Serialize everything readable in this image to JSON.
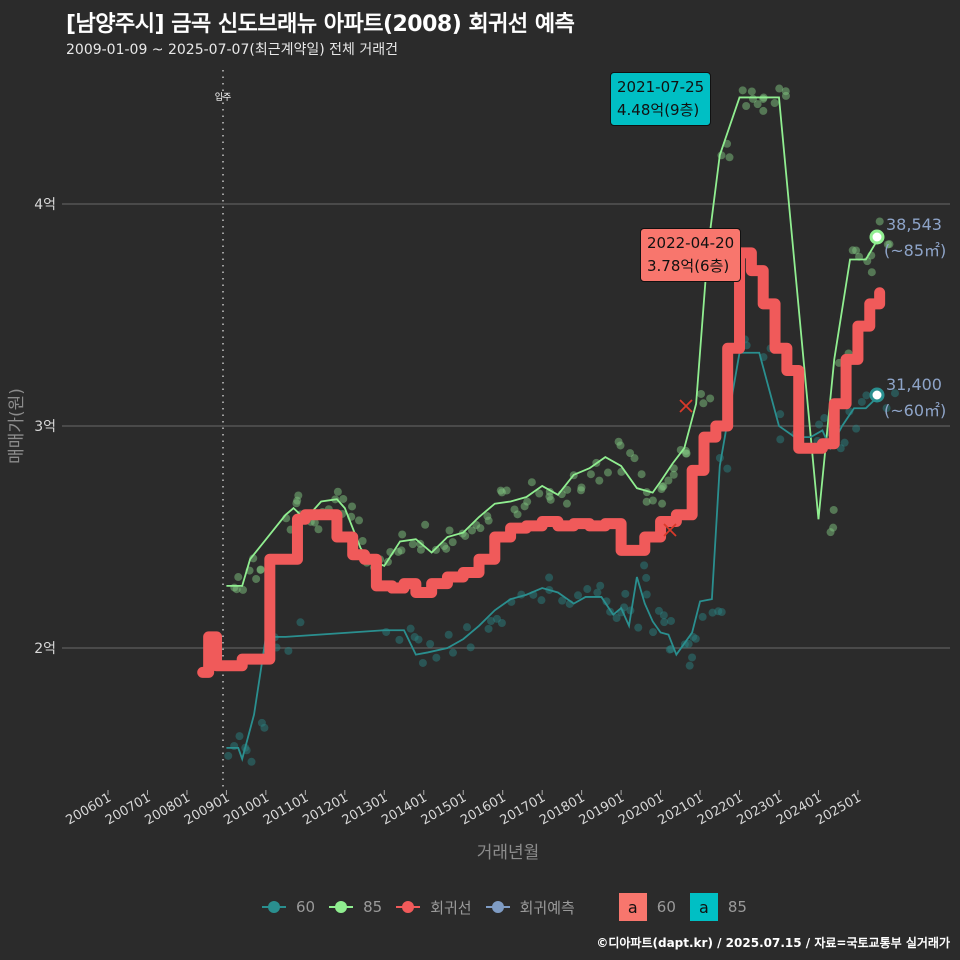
{
  "header": {
    "title": "[남양주시] 금곡 신도브래뉴 아파트(2008) 회귀선 예측",
    "subtitle": "2009-01-09 ~ 2025-07-07(최근계약일) 전체 거래건"
  },
  "axes": {
    "ylabel": "매매가(원)",
    "xlabel": "거래년월",
    "yticks": [
      "2억",
      "3억",
      "4억"
    ],
    "xticks": [
      "200601",
      "200701",
      "200801",
      "200901",
      "201001",
      "201101",
      "201201",
      "201301",
      "201401",
      "201501",
      "201601",
      "201701",
      "201801",
      "201901",
      "202001",
      "202101",
      "202201",
      "202301",
      "202401",
      "202501"
    ],
    "vline_label": "입주"
  },
  "annotations": {
    "max85": {
      "date": "2021-07-25",
      "value": "4.48억(9층)",
      "color": "#00bfc4"
    },
    "maxreg": {
      "date": "2022-04-20",
      "value": "3.78억(6층)",
      "color": "#f8766d"
    },
    "pred85": {
      "value": "38,543",
      "area": "(~85㎡)"
    },
    "pred60": {
      "value": "31,400",
      "area": "(~60㎡)"
    }
  },
  "legend": {
    "items": [
      {
        "label": "60",
        "color": "#2a8f8f"
      },
      {
        "label": "85",
        "color": "#90ee90"
      },
      {
        "label": "회귀선",
        "color": "#f05a5a"
      },
      {
        "label": "회귀예측",
        "color": "#7f9cc4"
      }
    ],
    "boxes": [
      {
        "glyph": "a",
        "label": "60",
        "color": "#f8766d"
      },
      {
        "glyph": "a",
        "label": "85",
        "color": "#00bfc4"
      }
    ]
  },
  "footer": "©디아파트(dapt.kr) / 2025.07.15 / 자료=국토교통부 실거래가",
  "chart_data": {
    "type": "line",
    "title": "[남양주시] 금곡 신도브래뉴 아파트(2008) 회귀선 예측",
    "subtitle": "2009-01-09 ~ 2025-07-07(최근계약일) 전체 거래건",
    "xlabel": "거래년월",
    "ylabel": "매매가(원)",
    "ylim": [
      14000,
      47500
    ],
    "unit": "만원",
    "grid": true,
    "legend_position": "bottom",
    "series": [
      {
        "name": "회귀선",
        "color": "#f05a5a",
        "x": [
          2008.4,
          2008.55,
          2008.75,
          2009.0,
          2009.4,
          2009.9,
          2010.1,
          2010.5,
          2010.8,
          2011.0,
          2011.5,
          2011.8,
          2012.2,
          2012.5,
          2012.8,
          2013.2,
          2013.5,
          2013.8,
          2014.2,
          2014.6,
          2015.0,
          2015.4,
          2015.8,
          2016.2,
          2016.6,
          2017.0,
          2017.4,
          2017.8,
          2018.2,
          2018.6,
          2019.0,
          2019.3,
          2019.6,
          2020.0,
          2020.4,
          2020.8,
          2021.1,
          2021.4,
          2021.7,
          2022.0,
          2022.3,
          2022.6,
          2022.9,
          2023.2,
          2023.5,
          2023.8,
          2024.1,
          2024.4,
          2024.7,
          2025.0,
          2025.3,
          2025.55
        ],
        "values": [
          18900,
          20500,
          19200,
          19200,
          19500,
          19500,
          24000,
          24000,
          25800,
          26000,
          26000,
          25000,
          24200,
          24000,
          22800,
          22700,
          22900,
          22500,
          22900,
          23200,
          23400,
          24000,
          25000,
          25400,
          25500,
          25700,
          25500,
          25600,
          25500,
          25600,
          24400,
          24400,
          25000,
          25700,
          26000,
          28000,
          29500,
          30000,
          33500,
          37800,
          37000,
          35500,
          33500,
          32500,
          29000,
          29000,
          29200,
          31000,
          33000,
          34500,
          35500,
          36000
        ]
      },
      {
        "name": "60",
        "color": "#2a8f8f",
        "x": [
          2009.0,
          2009.3,
          2009.4,
          2009.7,
          2010.0,
          2010.5,
          2013.0,
          2013.5,
          2013.8,
          2014.1,
          2014.6,
          2015.0,
          2015.4,
          2015.8,
          2016.2,
          2016.6,
          2017.0,
          2017.4,
          2017.8,
          2018.1,
          2018.5,
          2018.8,
          2019.0,
          2019.2,
          2019.4,
          2019.6,
          2019.8,
          2020.0,
          2020.2,
          2020.4,
          2020.6,
          2020.8,
          2021.0,
          2021.3,
          2021.5,
          2022.0,
          2022.5,
          2023.0,
          2023.4,
          2023.8,
          2024.1,
          2024.3,
          2024.6,
          2024.9,
          2025.2,
          2025.55
        ],
        "values": [
          15500,
          15500,
          15000,
          17000,
          20500,
          20500,
          20800,
          20800,
          19700,
          19800,
          20000,
          20400,
          21000,
          21700,
          22200,
          22400,
          22700,
          22500,
          22000,
          22300,
          22300,
          21500,
          21800,
          21000,
          23200,
          22000,
          21200,
          20700,
          20600,
          19700,
          20200,
          20700,
          22100,
          22200,
          28200,
          33300,
          33300,
          30000,
          29500,
          29500,
          29800,
          29000,
          30000,
          30800,
          30800,
          31400
        ]
      },
      {
        "name": "85",
        "color": "#90ee90",
        "x": [
          2009.0,
          2009.4,
          2009.6,
          2010.5,
          2010.7,
          2011.0,
          2011.4,
          2011.8,
          2012.0,
          2012.4,
          2012.6,
          2013.0,
          2013.4,
          2013.8,
          2014.2,
          2014.6,
          2015.0,
          2015.4,
          2015.8,
          2016.2,
          2016.6,
          2017.0,
          2017.4,
          2017.8,
          2018.2,
          2018.6,
          2019.0,
          2019.4,
          2019.8,
          2020.0,
          2020.3,
          2020.6,
          2020.9,
          2021.2,
          2021.5,
          2022.0,
          2022.3,
          2022.6,
          2023.0,
          2024.0,
          2024.4,
          2024.8,
          2025.2,
          2025.55
        ],
        "values": [
          22800,
          22800,
          24000,
          26000,
          26300,
          25800,
          26600,
          26700,
          26300,
          24500,
          24000,
          23700,
          24800,
          24900,
          24300,
          25000,
          25200,
          25900,
          26500,
          26600,
          26800,
          27300,
          26900,
          27800,
          28100,
          28600,
          28200,
          27200,
          27000,
          27500,
          28300,
          29000,
          31000,
          38000,
          42200,
          44800,
          44800,
          44800,
          44800,
          25800,
          33000,
          37500,
          37500,
          38543
        ]
      }
    ],
    "annotations": [
      {
        "label": "2021-07-25 4.48억(9층)",
        "series": "85"
      },
      {
        "label": "2022-04-20 3.78억(6층)",
        "series": "회귀선"
      },
      {
        "label": "38,543 (~85㎡)",
        "series": "85 예측"
      },
      {
        "label": "31,400 (~60㎡)",
        "series": "60 예측"
      }
    ]
  }
}
